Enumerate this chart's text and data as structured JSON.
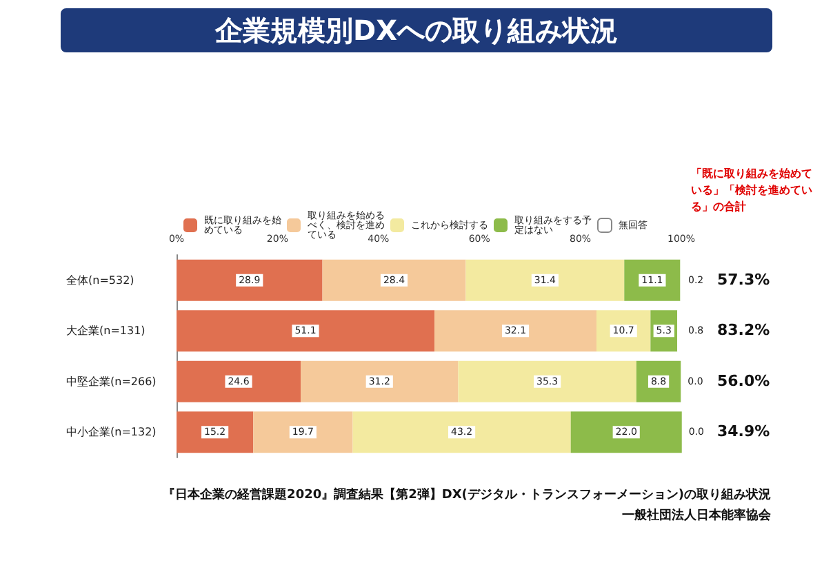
{
  "chart_data": {
    "type": "bar",
    "orientation": "horizontal",
    "stacked": true,
    "title": "企業規模別DXへの取り組み状況",
    "categories": [
      "全体(n=532)",
      "大企業(n=131)",
      "中堅企業(n=266)",
      "中小企業(n=132)"
    ],
    "series": [
      {
        "name": "既に取り組みを始めている",
        "color": "#e07050",
        "values": [
          28.9,
          51.1,
          24.6,
          15.2
        ],
        "value_labels": [
          "28.9",
          "51.1",
          "24.6",
          "15.2"
        ]
      },
      {
        "name": "取り組みを始めるべく、検討を進めている",
        "color": "#f5c99a",
        "values": [
          28.4,
          32.1,
          31.2,
          19.7
        ],
        "value_labels": [
          "28.4",
          "32.1",
          "31.2",
          "19.7"
        ]
      },
      {
        "name": "これから検討する",
        "color": "#f3eaa0",
        "values": [
          31.4,
          10.7,
          35.3,
          43.2
        ],
        "value_labels": [
          "31.4",
          "10.7",
          "35.3",
          "43.2"
        ]
      },
      {
        "name": "取り組みをする予定はない",
        "color": "#8dbb4a",
        "values": [
          11.1,
          5.3,
          8.8,
          22.0
        ],
        "value_labels": [
          "11.1",
          "5.3",
          "8.8",
          "22.0"
        ]
      },
      {
        "name": "無回答",
        "color": "#ffffff",
        "values": [
          0.2,
          0.8,
          0.0,
          0.0
        ],
        "value_labels": [
          "0.2",
          "0.8",
          "0.0",
          "0.0"
        ]
      }
    ],
    "xlim": [
      0,
      100
    ],
    "xticks": [
      {
        "value": 0,
        "label": "0%"
      },
      {
        "value": 20,
        "label": "20%"
      },
      {
        "value": 40,
        "label": "40%"
      },
      {
        "value": 60,
        "label": "60%"
      },
      {
        "value": 80,
        "label": "80%"
      },
      {
        "value": 100,
        "label": "100%"
      }
    ],
    "legend": "top",
    "grid": false,
    "annotations": [
      "「既に取り組みを始めている」「検討を進めている」の合計",
      "57.3%",
      "83.2%",
      "56.0%",
      "34.9%",
      "『日本企業の経営課題2020』調査結果【第2弾】DX(デジタル・トランスフォーメーション)の取り組み状況",
      "一般社団法人日本能率協会"
    ]
  }
}
